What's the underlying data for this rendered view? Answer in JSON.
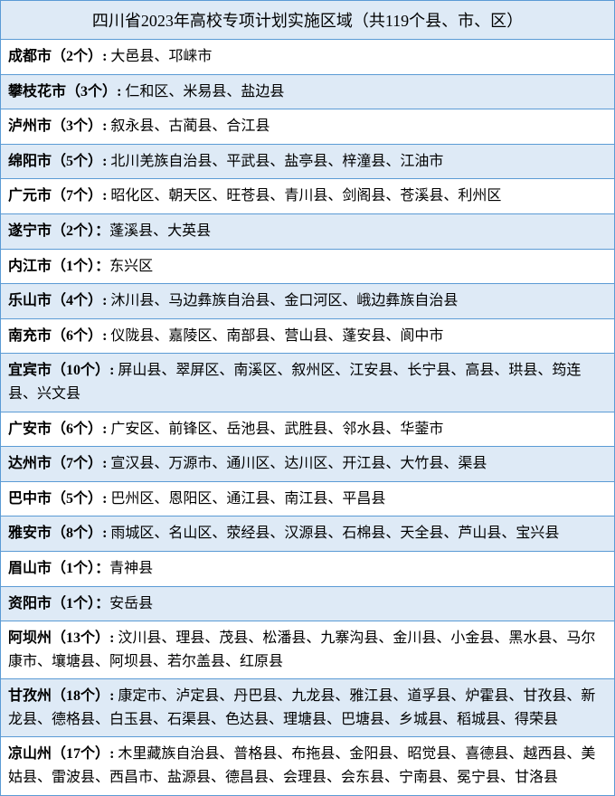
{
  "title": "四川省2023年高校专项计划实施区域（共119个县、市、区）",
  "colors": {
    "border": "#5b9bd5",
    "band_even": "#deeaf6",
    "band_odd": "#ffffff",
    "text": "#000000"
  },
  "font": {
    "title_size": 18,
    "body_size": 16,
    "family": "SimSun"
  },
  "rows": [
    {
      "city": "成都市",
      "count": "2个",
      "sep": ": ",
      "counties": "大邑县、邛崃市"
    },
    {
      "city": "攀枝花市",
      "count": "3个",
      "sep": ": ",
      "counties": "仁和区、米易县、盐边县"
    },
    {
      "city": "泸州市",
      "count": "3个",
      "sep": ": ",
      "counties": "叙永县、古蔺县、合江县"
    },
    {
      "city": "绵阳市",
      "count": "5个",
      "sep": ": ",
      "counties": "北川羌族自治县、平武县、盐亭县、梓潼县、江油市"
    },
    {
      "city": "广元市",
      "count": "7个",
      "sep": ": ",
      "counties": "昭化区、朝天区、旺苍县、青川县、剑阁县、苍溪县、利州区"
    },
    {
      "city": "遂宁市",
      "count": "2个",
      "sep": "：",
      "counties": "蓬溪县、大英县"
    },
    {
      "city": "内江市",
      "count": "1个",
      "sep": "：",
      "counties": "东兴区"
    },
    {
      "city": "乐山市",
      "count": "4个",
      "sep": ": ",
      "counties": "沐川县、马边彝族自治县、金口河区、峨边彝族自治县"
    },
    {
      "city": "南充市",
      "count": "6个",
      "sep": ": ",
      "counties": "仪陇县、嘉陵区、南部县、营山县、蓬安县、阆中市"
    },
    {
      "city": "宜宾市",
      "count": "10个",
      "sep": ": ",
      "counties": "屏山县、翠屏区、南溪区、叙州区、江安县、长宁县、高县、珙县、筠连县、兴文县"
    },
    {
      "city": "广安市",
      "count": "6个",
      "sep": ": ",
      "counties": "广安区、前锋区、岳池县、武胜县、邻水县、华蓥市"
    },
    {
      "city": "达州市",
      "count": "7个",
      "sep": ": ",
      "counties": "宣汉县、万源市、通川区、达川区、开江县、大竹县、渠县"
    },
    {
      "city": "巴中市",
      "count": "5个",
      "sep": ": ",
      "counties": "巴州区、恩阳区、通江县、南江县、平昌县"
    },
    {
      "city": "雅安市",
      "count": "8个",
      "sep": ": ",
      "counties": "雨城区、名山区、荥经县、汉源县、石棉县、天全县、芦山县、宝兴县"
    },
    {
      "city": "眉山市",
      "count": "1个",
      "sep": "：",
      "counties": "青神县"
    },
    {
      "city": "资阳市",
      "count": "1个",
      "sep": "：",
      "counties": "安岳县"
    },
    {
      "city": "阿坝州",
      "count": "13个",
      "sep": ": ",
      "counties": "汶川县、理县、茂县、松潘县、九寨沟县、金川县、小金县、黑水县、马尔康市、壤塘县、阿坝县、若尔盖县、红原县"
    },
    {
      "city": "甘孜州",
      "count": "18个",
      "sep": ": ",
      "counties": "康定市、泸定县、丹巴县、九龙县、雅江县、道孚县、炉霍县、甘孜县、新龙县、德格县、白玉县、石渠县、色达县、理塘县、巴塘县、乡城县、稻城县、得荣县"
    },
    {
      "city": "凉山州",
      "count": "17个",
      "sep": ": ",
      "counties": "木里藏族自治县、普格县、布拖县、金阳县、昭觉县、喜德县、越西县、美姑县、雷波县、西昌市、盐源县、德昌县、会理县、会东县、宁南县、冕宁县、甘洛县"
    }
  ]
}
